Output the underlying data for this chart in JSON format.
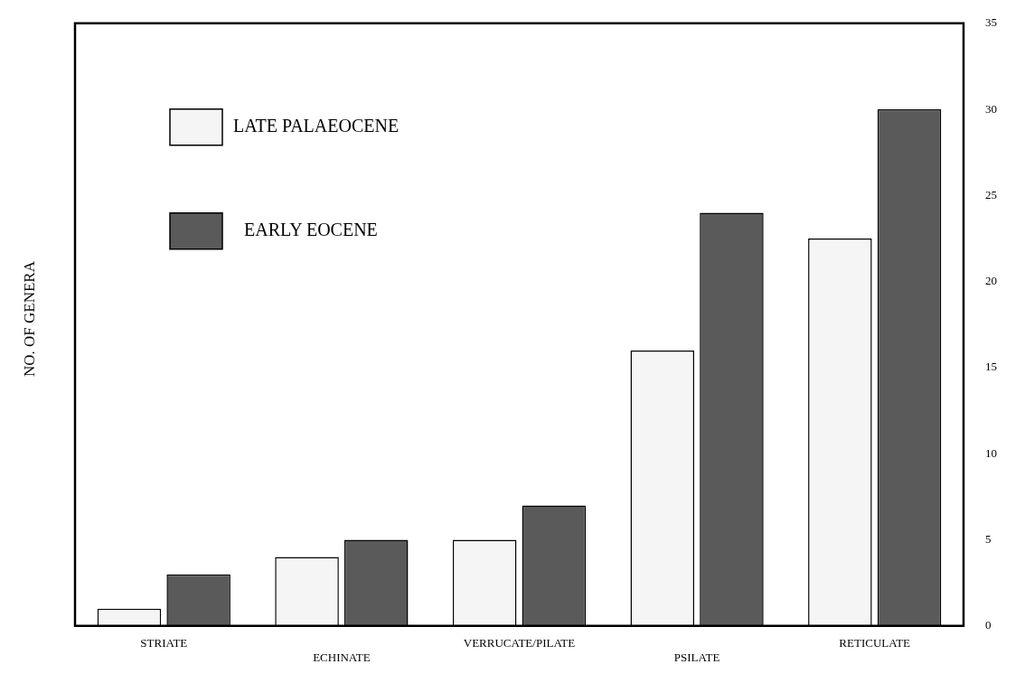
{
  "chart_data": {
    "type": "bar",
    "ylabel": "NO. OF GENERA",
    "categories": [
      "STRIATE",
      "ECHINATE",
      "VERRUCATE/PILATE",
      "PSILATE",
      "RETICULATE"
    ],
    "series": [
      {
        "name": "LATE PALAEOCENE",
        "color": "#f5f5f5",
        "values": [
          1,
          4,
          5,
          16,
          22.5
        ]
      },
      {
        "name": "EARLY EOCENE",
        "color": "#5a5a5a",
        "values": [
          3,
          5,
          7,
          24,
          30
        ]
      }
    ],
    "ylim": [
      0,
      35
    ],
    "yticks": [
      0,
      5,
      10,
      15,
      20,
      25,
      30,
      35
    ],
    "grid": false,
    "legend": "top left"
  }
}
